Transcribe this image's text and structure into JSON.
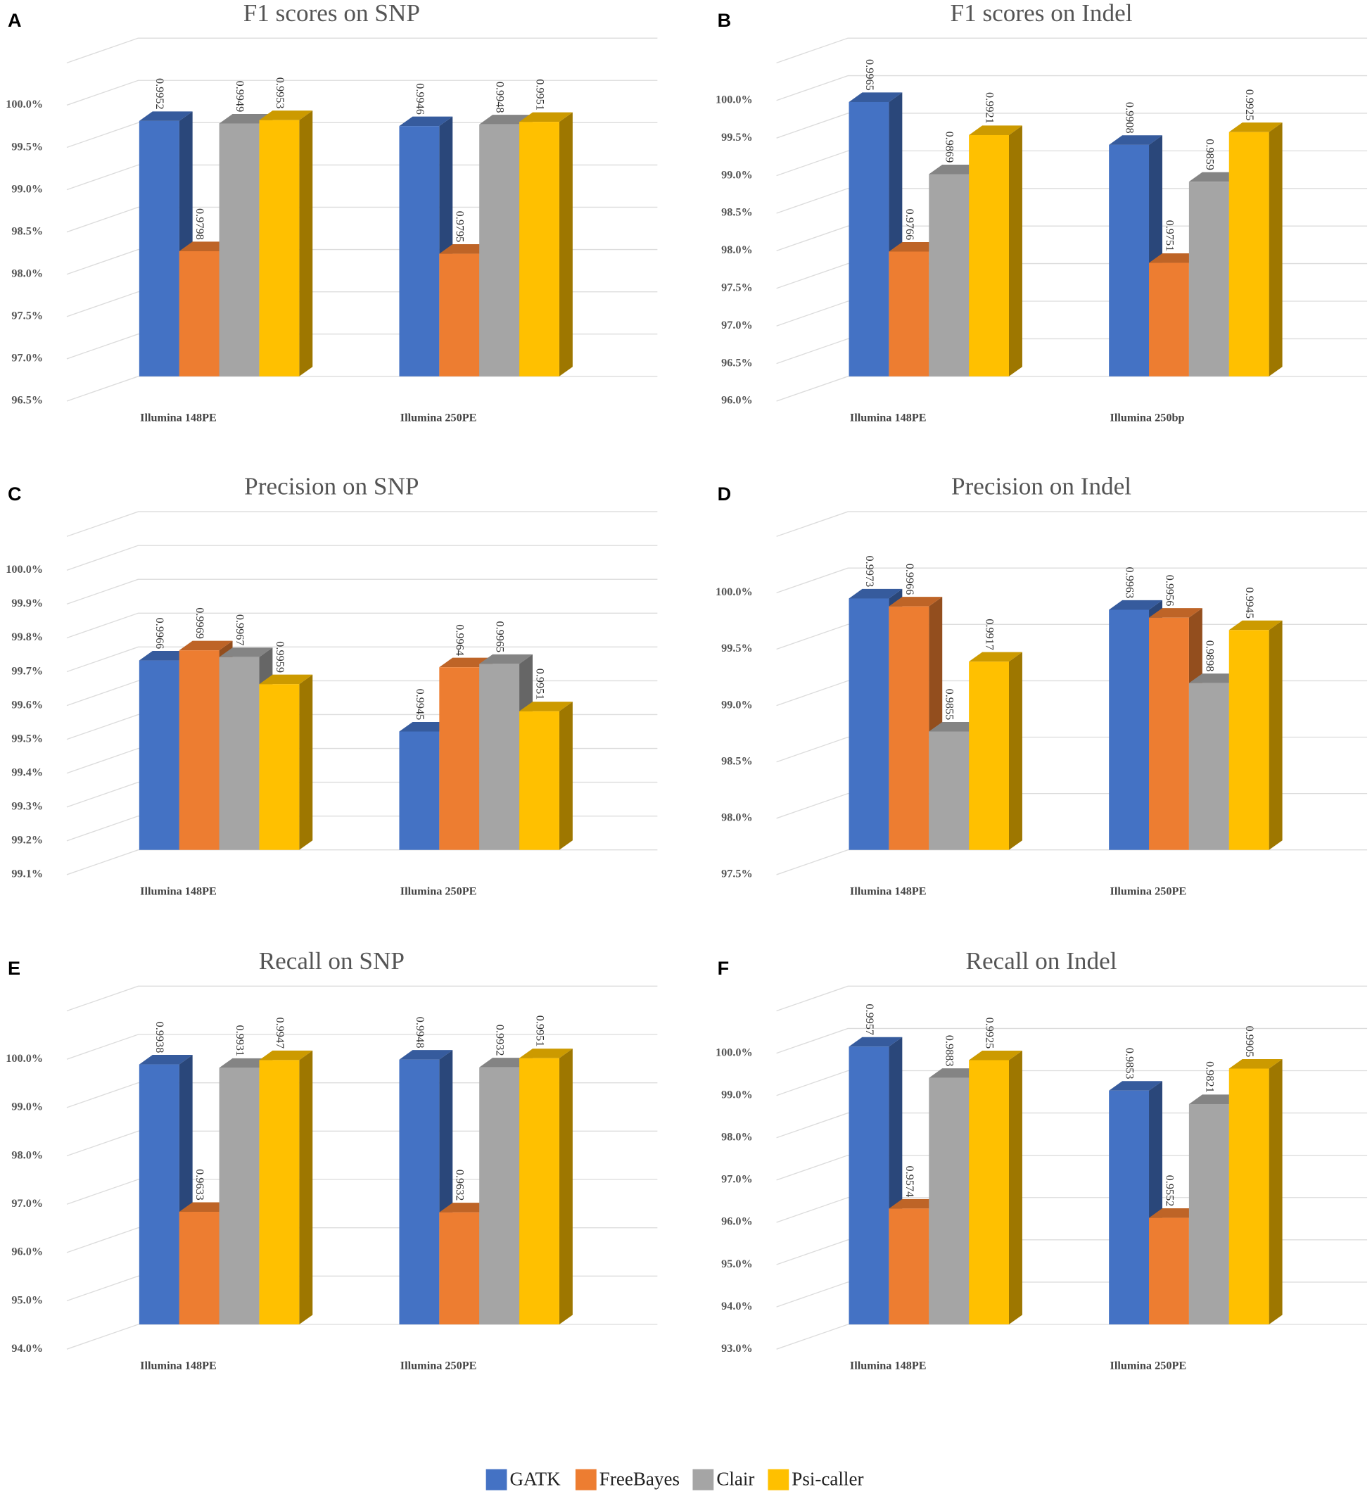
{
  "legend": [
    {
      "name": "GATK",
      "color": "#4472c4"
    },
    {
      "name": "FreeBayes",
      "color": "#ed7d31"
    },
    {
      "name": "Clair",
      "color": "#a5a5a5"
    },
    {
      "name": "Psi-caller",
      "color": "#ffc000"
    }
  ],
  "chart_data": [
    {
      "type": "bar3d",
      "panel": "A",
      "title": "F1 scores on SNP",
      "categories": [
        "Illumina 148PE",
        "Illumina 250PE"
      ],
      "series": [
        {
          "values": [
            99.52,
            99.46
          ],
          "value_labels": [
            "0.9952",
            "0.9946"
          ]
        },
        {
          "values": [
            97.98,
            97.95
          ],
          "value_labels": [
            "0.9798",
            "0.9795"
          ]
        },
        {
          "values": [
            99.49,
            99.48
          ],
          "value_labels": [
            "0.9949",
            "0.9948"
          ]
        },
        {
          "values": [
            99.53,
            99.51
          ],
          "value_labels": [
            "0.9953",
            "0.9951"
          ]
        }
      ],
      "ylim": [
        96.5,
        100.5
      ],
      "yticks": [
        {
          "value": 96.5,
          "label": "96.5%"
        },
        {
          "value": 97.0,
          "label": "97.0%"
        },
        {
          "value": 97.5,
          "label": "97.5%"
        },
        {
          "value": 98.0,
          "label": "98.0%"
        },
        {
          "value": 98.5,
          "label": "98.5%"
        },
        {
          "value": 99.0,
          "label": "99.0%"
        },
        {
          "value": 99.5,
          "label": "99.5%"
        },
        {
          "value": 100.0,
          "label": "100.0%"
        }
      ]
    },
    {
      "type": "bar3d",
      "panel": "B",
      "title": "F1 scores on Indel",
      "categories": [
        "Illumina 148PE",
        "Illumina 250bp"
      ],
      "series": [
        {
          "values": [
            99.65,
            99.08
          ],
          "value_labels": [
            "0.9965",
            "0.9908"
          ]
        },
        {
          "values": [
            97.66,
            97.51
          ],
          "value_labels": [
            "0.9766",
            "0.9751"
          ]
        },
        {
          "values": [
            98.69,
            98.59
          ],
          "value_labels": [
            "0.9869",
            "0.9859"
          ]
        },
        {
          "values": [
            99.21,
            99.25
          ],
          "value_labels": [
            "0.9921",
            "0.9925"
          ]
        }
      ],
      "ylim": [
        96.0,
        100.5
      ],
      "yticks": [
        {
          "value": 96.0,
          "label": "96.0%"
        },
        {
          "value": 96.5,
          "label": "96.5%"
        },
        {
          "value": 97.0,
          "label": "97.0%"
        },
        {
          "value": 97.5,
          "label": "97.5%"
        },
        {
          "value": 98.0,
          "label": "98.0%"
        },
        {
          "value": 98.5,
          "label": "98.5%"
        },
        {
          "value": 99.0,
          "label": "99.0%"
        },
        {
          "value": 99.5,
          "label": "99.5%"
        },
        {
          "value": 100.0,
          "label": "100.0%"
        }
      ]
    },
    {
      "type": "bar3d",
      "panel": "C",
      "title": "Precision on SNP",
      "categories": [
        "Illumina 148PE",
        "Illumina 250PE"
      ],
      "series": [
        {
          "values": [
            99.66,
            99.45
          ],
          "value_labels": [
            "0.9966",
            "0.9945"
          ]
        },
        {
          "values": [
            99.69,
            99.64
          ],
          "value_labels": [
            "0.9969",
            "0.9964"
          ]
        },
        {
          "values": [
            99.67,
            99.65
          ],
          "value_labels": [
            "0.9967",
            "0.9965"
          ]
        },
        {
          "values": [
            99.59,
            99.51
          ],
          "value_labels": [
            "0.9959",
            "0.9951"
          ]
        }
      ],
      "ylim": [
        99.1,
        100.1
      ],
      "yticks": [
        {
          "value": 99.1,
          "label": "99.1%"
        },
        {
          "value": 99.2,
          "label": "99.2%"
        },
        {
          "value": 99.3,
          "label": "99.3%"
        },
        {
          "value": 99.4,
          "label": "99.4%"
        },
        {
          "value": 99.5,
          "label": "99.5%"
        },
        {
          "value": 99.6,
          "label": "99.6%"
        },
        {
          "value": 99.7,
          "label": "99.7%"
        },
        {
          "value": 99.8,
          "label": "99.8%"
        },
        {
          "value": 99.9,
          "label": "99.9%"
        },
        {
          "value": 100.0,
          "label": "100.0%"
        }
      ]
    },
    {
      "type": "bar3d",
      "panel": "D",
      "title": "Precision on Indel",
      "categories": [
        "Illumina 148PE",
        "Illumina 250PE"
      ],
      "series": [
        {
          "values": [
            99.73,
            99.63
          ],
          "value_labels": [
            "0.9973",
            "0.9963"
          ]
        },
        {
          "values": [
            99.66,
            99.56
          ],
          "value_labels": [
            "0.9966",
            "0.9956"
          ]
        },
        {
          "values": [
            98.55,
            98.98
          ],
          "value_labels": [
            "0.9855",
            "0.9898"
          ]
        },
        {
          "values": [
            99.17,
            99.45
          ],
          "value_labels": [
            "0.9917",
            "0.9945"
          ]
        }
      ],
      "ylim": [
        97.5,
        100.5
      ],
      "yticks": [
        {
          "value": 97.5,
          "label": "97.5%"
        },
        {
          "value": 98.0,
          "label": "98.0%"
        },
        {
          "value": 98.5,
          "label": "98.5%"
        },
        {
          "value": 99.0,
          "label": "99.0%"
        },
        {
          "value": 99.5,
          "label": "99.5%"
        },
        {
          "value": 100.0,
          "label": "100.0%"
        }
      ]
    },
    {
      "type": "bar3d",
      "panel": "E",
      "title": "Recall on SNP",
      "categories": [
        "Illumina 148PE",
        "Illumina 250PE"
      ],
      "series": [
        {
          "values": [
            99.38,
            99.48
          ],
          "value_labels": [
            "0.9938",
            "0.9948"
          ]
        },
        {
          "values": [
            96.33,
            96.32
          ],
          "value_labels": [
            "0.9633",
            "0.9632"
          ]
        },
        {
          "values": [
            99.31,
            99.32
          ],
          "value_labels": [
            "0.9931",
            "0.9932"
          ]
        },
        {
          "values": [
            99.47,
            99.51
          ],
          "value_labels": [
            "0.9947",
            "0.9951"
          ]
        }
      ],
      "ylim": [
        94.0,
        101.0
      ],
      "yticks": [
        {
          "value": 94.0,
          "label": "94.0%"
        },
        {
          "value": 95.0,
          "label": "95.0%"
        },
        {
          "value": 96.0,
          "label": "96.0%"
        },
        {
          "value": 97.0,
          "label": "97.0%"
        },
        {
          "value": 98.0,
          "label": "98.0%"
        },
        {
          "value": 99.0,
          "label": "99.0%"
        },
        {
          "value": 100.0,
          "label": "100.0%"
        }
      ]
    },
    {
      "type": "bar3d",
      "panel": "F",
      "title": "Recall on Indel",
      "categories": [
        "Illumina 148PE",
        "Illumina 250PE"
      ],
      "series": [
        {
          "values": [
            99.57,
            98.53
          ],
          "value_labels": [
            "0.9957",
            "0.9853"
          ]
        },
        {
          "values": [
            95.74,
            95.52
          ],
          "value_labels": [
            "0.9574",
            "0.9552"
          ]
        },
        {
          "values": [
            98.83,
            98.21
          ],
          "value_labels": [
            "0.9883",
            "0.9821"
          ]
        },
        {
          "values": [
            99.25,
            99.05
          ],
          "value_labels": [
            "0.9925",
            "0.9905"
          ]
        }
      ],
      "ylim": [
        93.0,
        101.0
      ],
      "yticks": [
        {
          "value": 93.0,
          "label": "93.0%"
        },
        {
          "value": 94.0,
          "label": "94.0%"
        },
        {
          "value": 95.0,
          "label": "95.0%"
        },
        {
          "value": 96.0,
          "label": "96.0%"
        },
        {
          "value": 97.0,
          "label": "97.0%"
        },
        {
          "value": 98.0,
          "label": "98.0%"
        },
        {
          "value": 99.0,
          "label": "99.0%"
        },
        {
          "value": 100.0,
          "label": "100.0%"
        }
      ]
    }
  ]
}
